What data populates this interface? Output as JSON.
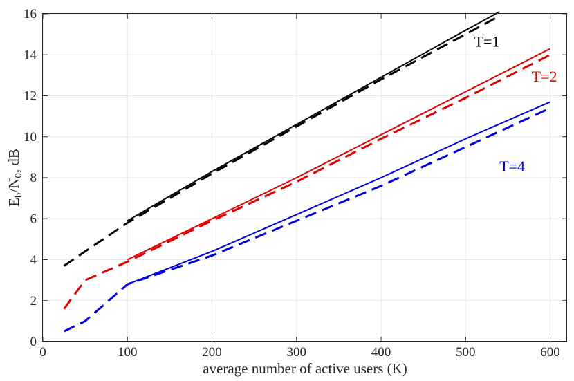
{
  "chart_data": {
    "type": "line",
    "xlabel": "average number of active users (K)",
    "ylabel": "E_b/N_0, dB",
    "xlim": [
      0,
      620
    ],
    "ylim": [
      0,
      16
    ],
    "xticks": [
      0,
      100,
      200,
      300,
      400,
      500,
      600
    ],
    "yticks": [
      0,
      2,
      4,
      6,
      8,
      10,
      12,
      14,
      16
    ],
    "grid": true,
    "series": [
      {
        "group": "T=1",
        "style": "solid",
        "color": "#000000",
        "x": [
          100,
          200,
          300,
          400,
          500,
          540
        ],
        "y": [
          5.9,
          8.3,
          10.6,
          12.9,
          15.2,
          16.1
        ]
      },
      {
        "group": "T=1",
        "style": "dashed",
        "color": "#000000",
        "x": [
          25,
          50,
          100,
          200,
          300,
          400,
          500,
          540
        ],
        "y": [
          3.7,
          4.4,
          5.8,
          8.2,
          10.5,
          12.8,
          15.0,
          15.9
        ]
      },
      {
        "group": "T=2",
        "style": "solid",
        "color": "#e00000",
        "x": [
          100,
          200,
          300,
          400,
          500,
          600
        ],
        "y": [
          4.0,
          6.0,
          8.0,
          10.1,
          12.2,
          14.3
        ]
      },
      {
        "group": "T=2",
        "style": "dashed",
        "color": "#e00000",
        "x": [
          25,
          50,
          100,
          200,
          300,
          400,
          500,
          600
        ],
        "y": [
          1.6,
          3.0,
          3.9,
          5.9,
          7.8,
          9.9,
          11.9,
          14.0
        ]
      },
      {
        "group": "T=4",
        "style": "solid",
        "color": "#0000e0",
        "x": [
          100,
          200,
          300,
          400,
          500,
          600
        ],
        "y": [
          2.8,
          4.4,
          6.2,
          8.0,
          9.9,
          11.7
        ]
      },
      {
        "group": "T=4",
        "style": "dashed",
        "color": "#0000e0",
        "x": [
          25,
          50,
          100,
          200,
          300,
          400,
          500,
          600
        ],
        "y": [
          0.5,
          1.0,
          2.8,
          4.2,
          5.9,
          7.6,
          9.5,
          11.4
        ]
      }
    ],
    "annotations": [
      {
        "text": "T=1",
        "color": "#000000",
        "x": 510,
        "y": 14.4
      },
      {
        "text": "T=2",
        "color": "#e00000",
        "x": 578,
        "y": 12.7
      },
      {
        "text": "T=4",
        "color": "#0000e0",
        "x": 540,
        "y": 8.3
      }
    ]
  }
}
